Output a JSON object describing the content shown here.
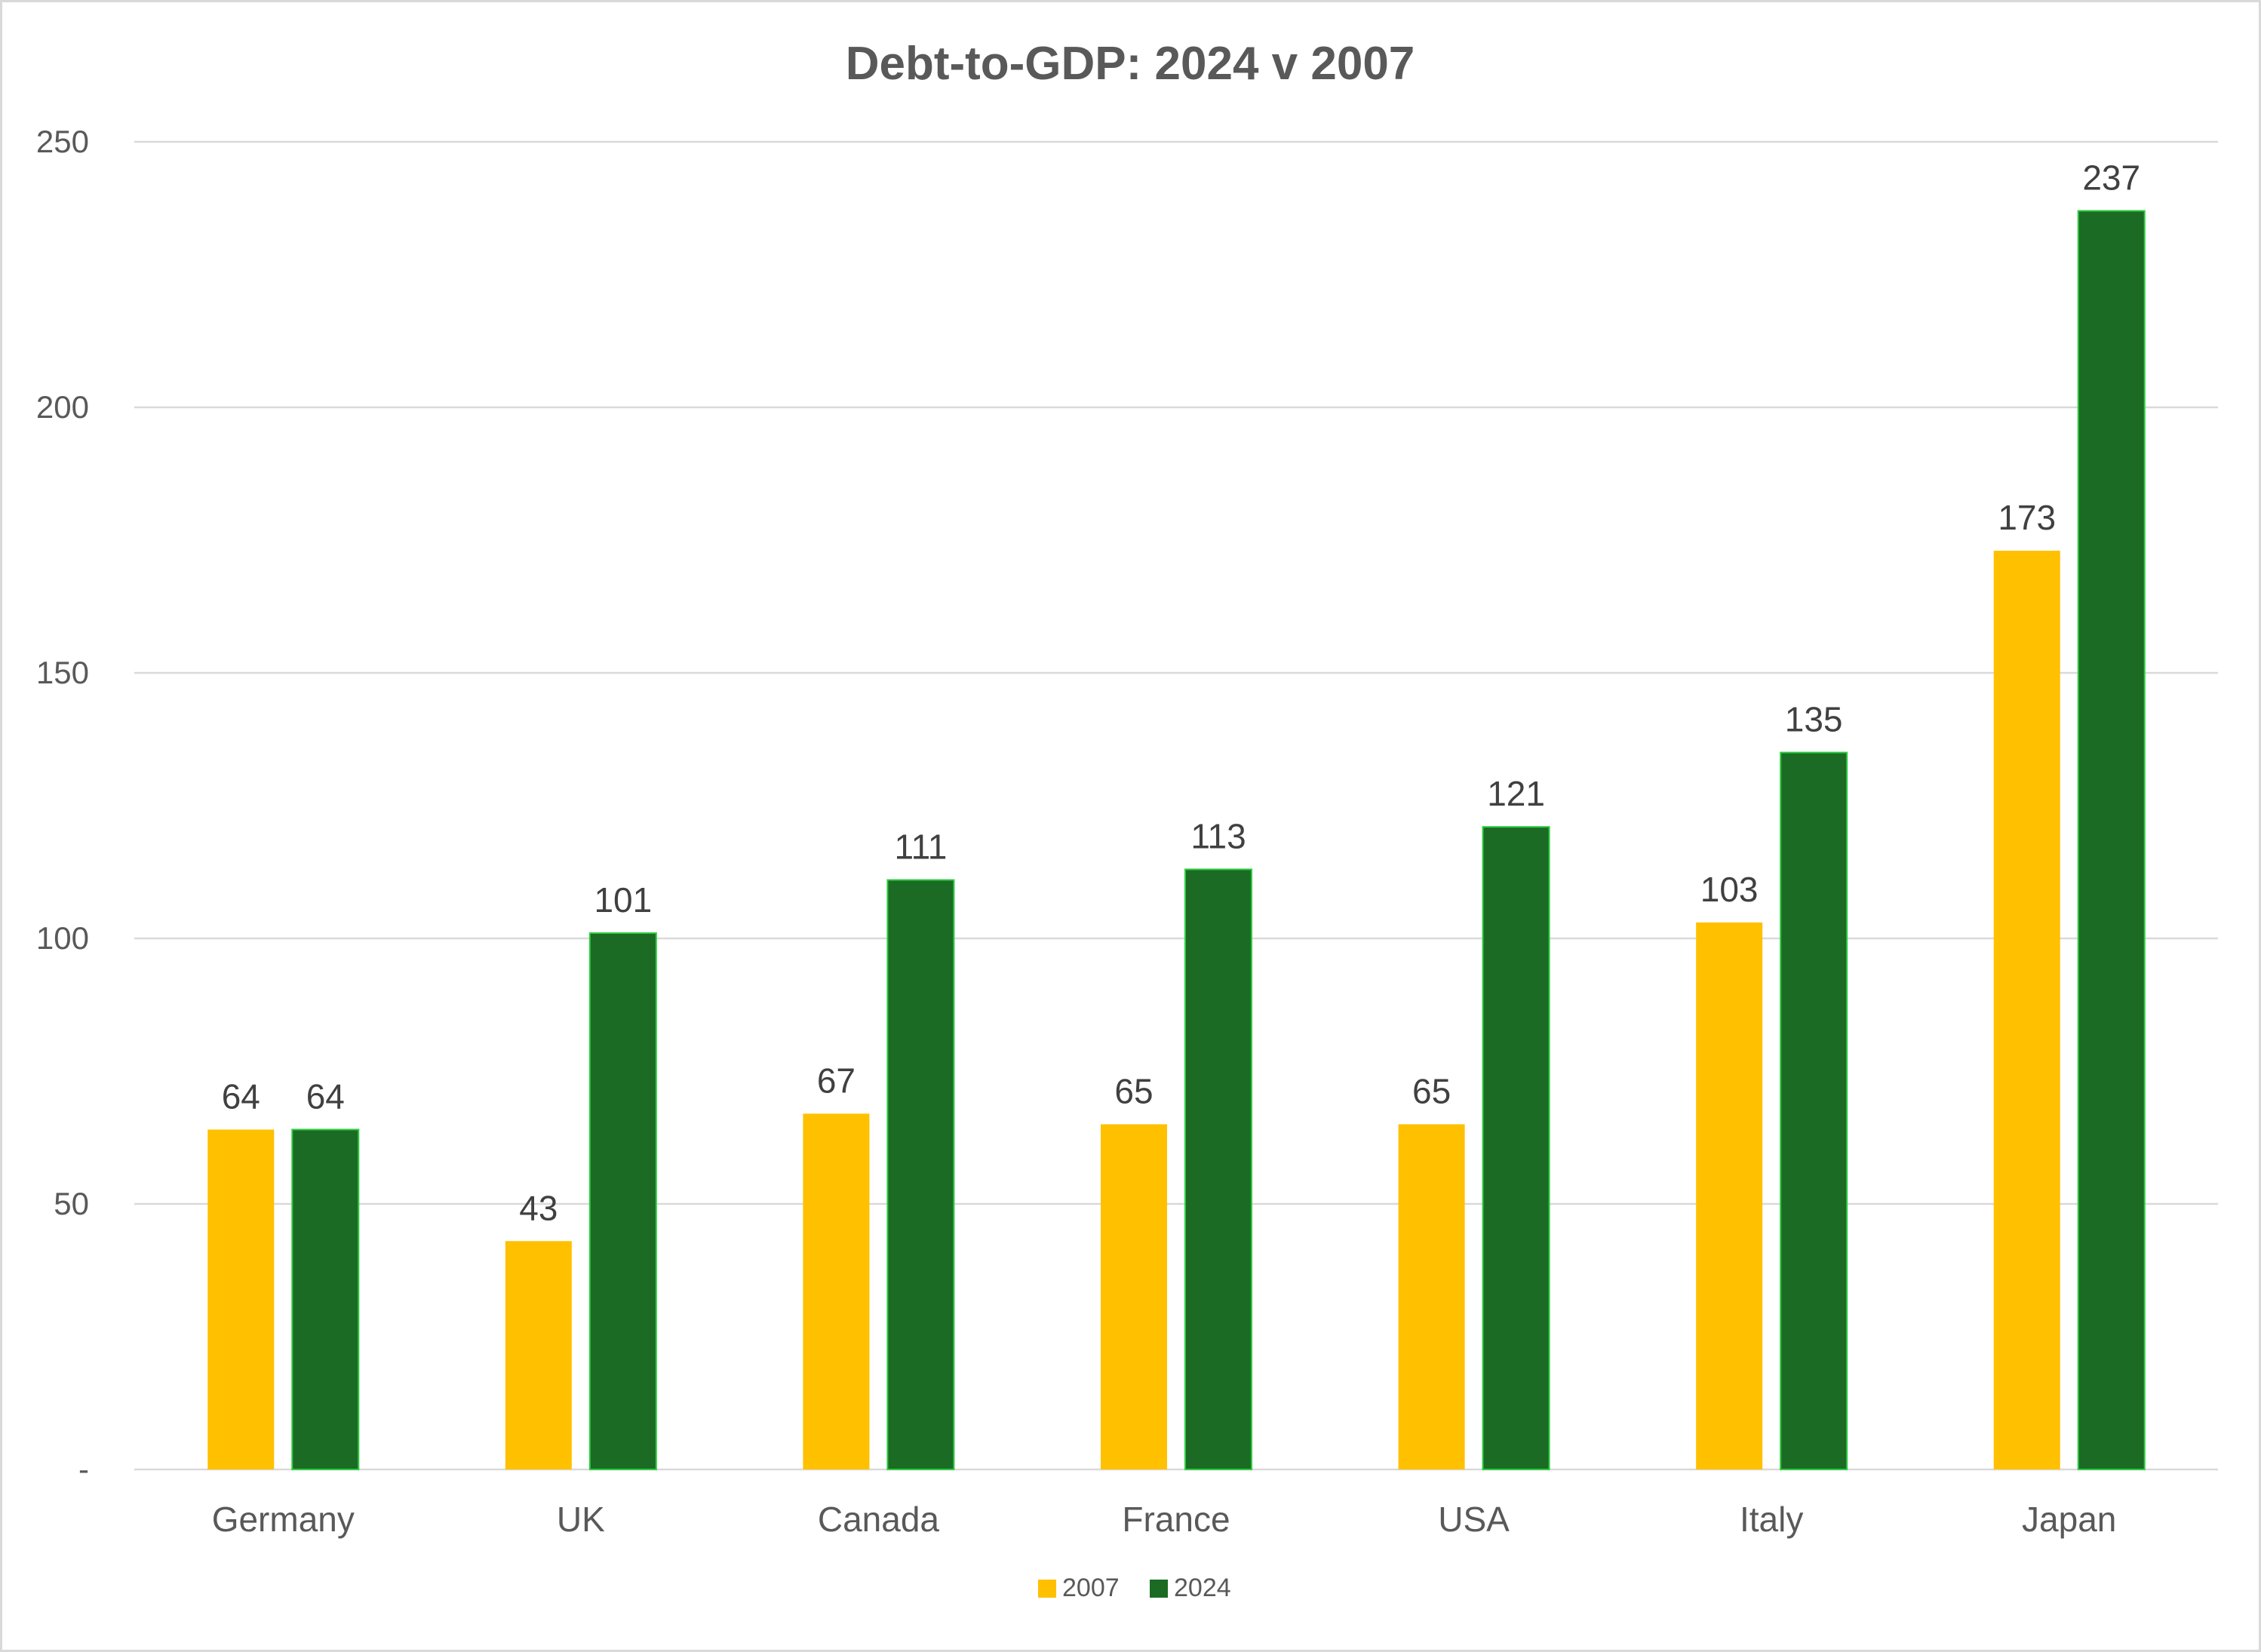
{
  "chart_data": {
    "type": "bar",
    "title": "Debt-to-GDP: 2024 v 2007",
    "xlabel": "",
    "ylabel": "",
    "categories": [
      "Germany",
      "UK",
      "Canada",
      "France",
      "USA",
      "Italy",
      "Japan"
    ],
    "series": [
      {
        "name": "2007",
        "color": "#FFC000",
        "values": [
          64,
          43,
          67,
          65,
          65,
          103,
          173
        ]
      },
      {
        "name": "2024",
        "color": "#1B6B24",
        "values": [
          64,
          101,
          111,
          113,
          121,
          135,
          237
        ]
      }
    ],
    "data_labels": [
      [
        "64",
        "43",
        "67",
        "65",
        "65",
        "103",
        "173"
      ],
      [
        "64",
        "101",
        "111",
        "113",
        "121",
        "135",
        "237"
      ]
    ],
    "ylim": [
      0,
      250
    ],
    "yticks": [
      0,
      50,
      100,
      150,
      200,
      250
    ],
    "ytick_labels": [
      "-",
      "50",
      "100",
      "150",
      "200",
      "250"
    ],
    "grid": true,
    "legend": "bottom-center"
  }
}
